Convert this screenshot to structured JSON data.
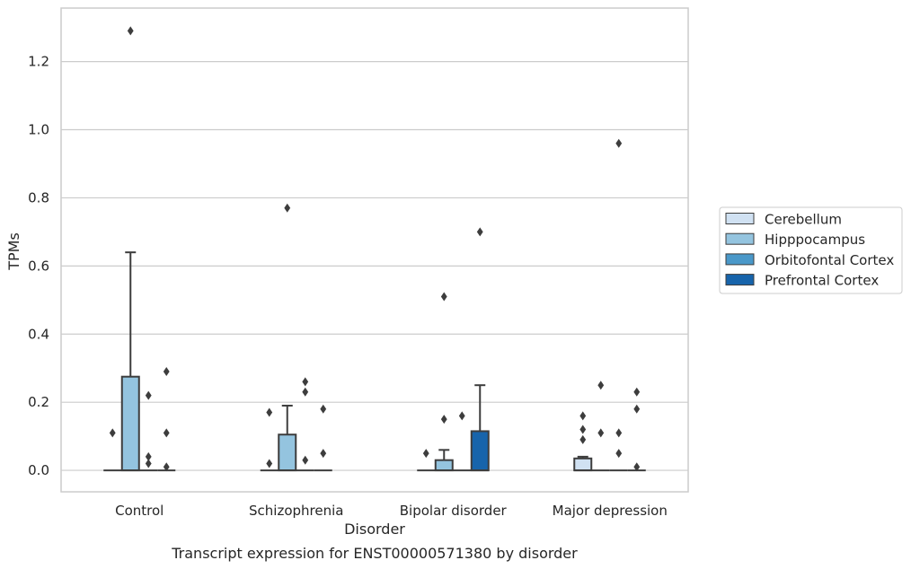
{
  "chart_data": {
    "type": "box",
    "title": "",
    "caption": "Transcript expression for ENST00000571380 by disorder",
    "xlabel": "Disorder",
    "ylabel": "TPMs",
    "ylim": [
      -0.063,
      1.357
    ],
    "yticks": [
      "0.0",
      "0.2",
      "0.4",
      "0.6",
      "0.8",
      "1.0",
      "1.2"
    ],
    "ytick_values": [
      0.0,
      0.2,
      0.4,
      0.6,
      0.8,
      1.0,
      1.2
    ],
    "grid": "horizontal",
    "legend_position": "right",
    "categories": [
      "Control",
      "Schizophrenia",
      "Bipolar disorder",
      "Major depression"
    ],
    "series": [
      {
        "name": "Cerebellum",
        "color": "#d0e1f2",
        "boxes": [
          {
            "q1": 0.0,
            "median": 0.0,
            "q3": 0.0,
            "whisker_low": 0.0,
            "whisker_high": 0.0,
            "outliers": [
              0.11
            ]
          },
          {
            "q1": 0.0,
            "median": 0.0,
            "q3": 0.0,
            "whisker_low": 0.0,
            "whisker_high": 0.0,
            "outliers": [
              0.17,
              0.02
            ]
          },
          {
            "q1": 0.0,
            "median": 0.0,
            "q3": 0.0,
            "whisker_low": 0.0,
            "whisker_high": 0.0,
            "outliers": [
              0.05
            ]
          },
          {
            "q1": 0.0,
            "median": 0.0,
            "q3": 0.035,
            "whisker_low": 0.0,
            "whisker_high": 0.04,
            "outliers": [
              0.16,
              0.12,
              0.09
            ]
          }
        ]
      },
      {
        "name": "Hipppocampus",
        "color": "#94c4df",
        "boxes": [
          {
            "q1": 0.0,
            "median": 0.0,
            "q3": 0.275,
            "whisker_low": 0.0,
            "whisker_high": 0.64,
            "outliers": [
              1.29
            ]
          },
          {
            "q1": 0.0,
            "median": 0.0,
            "q3": 0.105,
            "whisker_low": 0.0,
            "whisker_high": 0.19,
            "outliers": [
              0.77
            ]
          },
          {
            "q1": 0.0,
            "median": 0.0,
            "q3": 0.03,
            "whisker_low": 0.0,
            "whisker_high": 0.06,
            "outliers": [
              0.51,
              0.15
            ]
          },
          {
            "q1": 0.0,
            "median": 0.0,
            "q3": 0.0,
            "whisker_low": 0.0,
            "whisker_high": 0.0,
            "outliers": [
              0.25,
              0.11
            ]
          }
        ]
      },
      {
        "name": "Orbitofontal Cortex",
        "color": "#4a98c9",
        "boxes": [
          {
            "q1": 0.0,
            "median": 0.0,
            "q3": 0.0,
            "whisker_low": 0.0,
            "whisker_high": 0.0,
            "outliers": [
              0.22,
              0.04,
              0.02
            ]
          },
          {
            "q1": 0.0,
            "median": 0.0,
            "q3": 0.0,
            "whisker_low": 0.0,
            "whisker_high": 0.0,
            "outliers": [
              0.26,
              0.23,
              0.03
            ]
          },
          {
            "q1": 0.0,
            "median": 0.0,
            "q3": 0.0,
            "whisker_low": 0.0,
            "whisker_high": 0.0,
            "outliers": [
              0.16
            ]
          },
          {
            "q1": 0.0,
            "median": 0.0,
            "q3": 0.0,
            "whisker_low": 0.0,
            "whisker_high": 0.0,
            "outliers": [
              0.96,
              0.11,
              0.05
            ]
          }
        ]
      },
      {
        "name": "Prefrontal Cortex",
        "color": "#1764ab",
        "boxes": [
          {
            "q1": 0.0,
            "median": 0.0,
            "q3": 0.0,
            "whisker_low": 0.0,
            "whisker_high": 0.0,
            "outliers": [
              0.29,
              0.11,
              0.01
            ]
          },
          {
            "q1": 0.0,
            "median": 0.0,
            "q3": 0.0,
            "whisker_low": 0.0,
            "whisker_high": 0.0,
            "outliers": [
              0.18,
              0.05
            ]
          },
          {
            "q1": 0.0,
            "median": 0.0,
            "q3": 0.115,
            "whisker_low": 0.0,
            "whisker_high": 0.25,
            "outliers": [
              0.7
            ]
          },
          {
            "q1": 0.0,
            "median": 0.0,
            "q3": 0.0,
            "whisker_low": 0.0,
            "whisker_high": 0.0,
            "outliers": [
              0.23,
              0.18,
              0.01
            ]
          }
        ]
      }
    ]
  }
}
